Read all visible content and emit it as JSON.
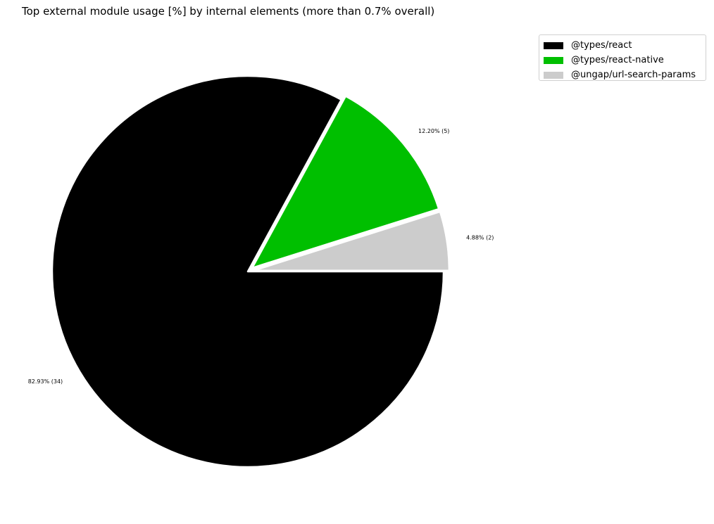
{
  "chart_data": {
    "type": "pie",
    "title": "Top external module usage [%] by internal elements (more than 0.7% overall)",
    "slices": [
      {
        "label": "@types/react",
        "value": 82.93,
        "count": 34,
        "color": "#000000",
        "exploded": false,
        "data_label": "82.93% (34)"
      },
      {
        "label": "@types/react-native",
        "value": 12.2,
        "count": 5,
        "color": "#00bf00",
        "exploded": true,
        "data_label": "12.20% (5)"
      },
      {
        "label": "@ungap/url-search-params",
        "value": 4.88,
        "count": 2,
        "color": "#cccccc",
        "exploded": true,
        "data_label": "4.88% (2)"
      }
    ],
    "start_angle_deg": 0,
    "direction": "clockwise",
    "legend_position": "top-right"
  }
}
